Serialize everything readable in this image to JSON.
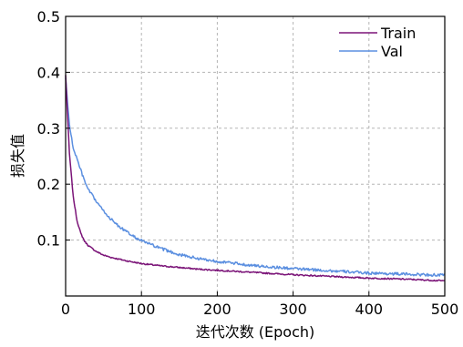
{
  "chart_data": {
    "type": "line",
    "title": "",
    "xlabel": "迭代次数 (Epoch)",
    "ylabel": "损失值",
    "xlim": [
      0,
      500
    ],
    "ylim": [
      0.0,
      0.5
    ],
    "x_ticks": [
      0,
      100,
      200,
      300,
      400,
      500
    ],
    "y_ticks": [
      0.1,
      0.2,
      0.3,
      0.4,
      0.5
    ],
    "x_tick_labels": [
      "0",
      "100",
      "200",
      "300",
      "400",
      "500"
    ],
    "y_tick_labels": [
      "0.1",
      "0.2",
      "0.3",
      "0.4",
      "0.5"
    ],
    "grid": true,
    "legend_position": "top-right",
    "series": [
      {
        "name": "Train",
        "color": "#7b1478",
        "x": [
          0,
          5,
          10,
          15,
          20,
          25,
          30,
          40,
          50,
          60,
          80,
          100,
          125,
          150,
          175,
          200,
          250,
          300,
          350,
          400,
          450,
          500
        ],
        "y": [
          0.395,
          0.255,
          0.178,
          0.135,
          0.112,
          0.098,
          0.09,
          0.08,
          0.073,
          0.069,
          0.063,
          0.058,
          0.054,
          0.051,
          0.048,
          0.046,
          0.042,
          0.038,
          0.035,
          0.032,
          0.03,
          0.027
        ]
      },
      {
        "name": "Val",
        "color": "#5b8fe0",
        "x": [
          0,
          5,
          10,
          15,
          20,
          25,
          30,
          40,
          50,
          60,
          70,
          80,
          90,
          100,
          125,
          150,
          175,
          200,
          250,
          300,
          350,
          400,
          450,
          500
        ],
        "y": [
          0.39,
          0.305,
          0.265,
          0.245,
          0.225,
          0.205,
          0.19,
          0.17,
          0.152,
          0.137,
          0.125,
          0.115,
          0.106,
          0.099,
          0.085,
          0.074,
          0.067,
          0.062,
          0.054,
          0.049,
          0.045,
          0.041,
          0.039,
          0.037
        ]
      }
    ]
  }
}
